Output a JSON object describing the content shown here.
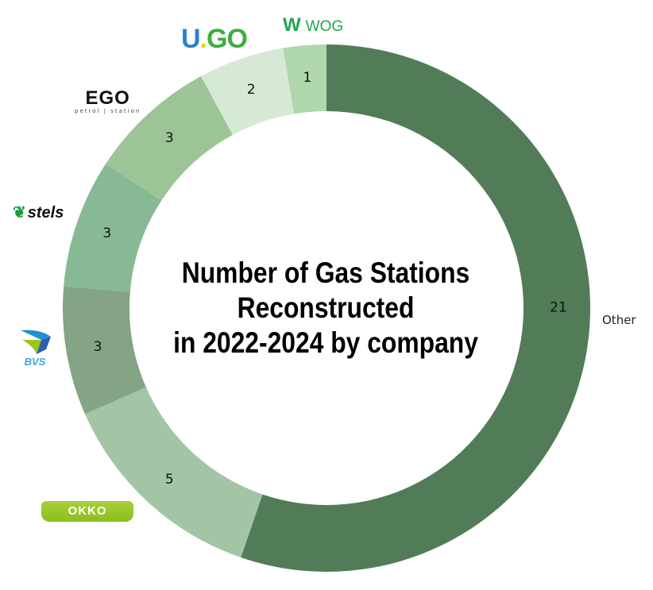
{
  "chart_data": {
    "type": "pie",
    "donut": true,
    "title": [
      "Number of Gas Stations",
      "Reconstructed",
      "in 2022-2024 by company"
    ],
    "slices": [
      {
        "label": "Other",
        "value": 21,
        "color": "#527c57"
      },
      {
        "label": "OKKO",
        "value": 5,
        "color": "#a3c5a5"
      },
      {
        "label": "BVS",
        "value": 3,
        "color": "#84a485"
      },
      {
        "label": "stels",
        "value": 3,
        "color": "#87b994"
      },
      {
        "label": "EGO",
        "value": 3,
        "color": "#9cc496"
      },
      {
        "label": "U.GO",
        "value": 2,
        "color": "#d6e9d4"
      },
      {
        "label": "WOG",
        "value": 1,
        "color": "#b0d6ab"
      }
    ],
    "start": "top",
    "direction": "clockwise",
    "legend": "logos beside each slice"
  },
  "logos": {
    "wog": "WOG",
    "ugo": [
      "U",
      ".",
      "GO"
    ],
    "ego": "EGO",
    "ego_sub": "petrol | station",
    "stels": "stels",
    "bvs": "BVS",
    "okko": "OKKO",
    "other": "Other"
  }
}
